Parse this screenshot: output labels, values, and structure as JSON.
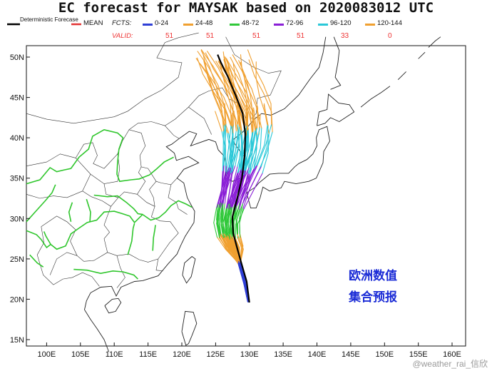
{
  "title": "EC forecast for MAYSAK based on 2020083012 UTC",
  "legend": {
    "deterministic_label": "Deterministic Forecase",
    "mean_label": "MEAN",
    "fcts_label": "FCTS:",
    "valid_label": "VALID:",
    "ranges": [
      {
        "label": "0-24",
        "color": "#2f3fd6",
        "valid": "51"
      },
      {
        "label": "24-48",
        "color": "#f0a030",
        "valid": "51"
      },
      {
        "label": "48-72",
        "color": "#30c83a",
        "valid": "51"
      },
      {
        "label": "72-96",
        "color": "#8a1fd6",
        "valid": "51"
      },
      {
        "label": "96-120",
        "color": "#2ac8d8",
        "valid": "33"
      },
      {
        "label": "120-144",
        "color": "#f0a030",
        "valid": "0"
      }
    ],
    "deterministic_color": "#000000",
    "mean_color": "#e33333"
  },
  "map": {
    "lat_labels": [
      "50N",
      "45N",
      "40N",
      "35N",
      "30N",
      "25N",
      "20N",
      "15N"
    ],
    "lon_labels": [
      "100E",
      "105E",
      "110E",
      "115E",
      "120E",
      "125E",
      "130E",
      "135E",
      "140E",
      "145E",
      "150E",
      "155E",
      "160E"
    ]
  },
  "annotation": {
    "line1": "欧洲数值",
    "line2": "集合预报"
  },
  "watermark": "@weather_rai_信欣"
}
